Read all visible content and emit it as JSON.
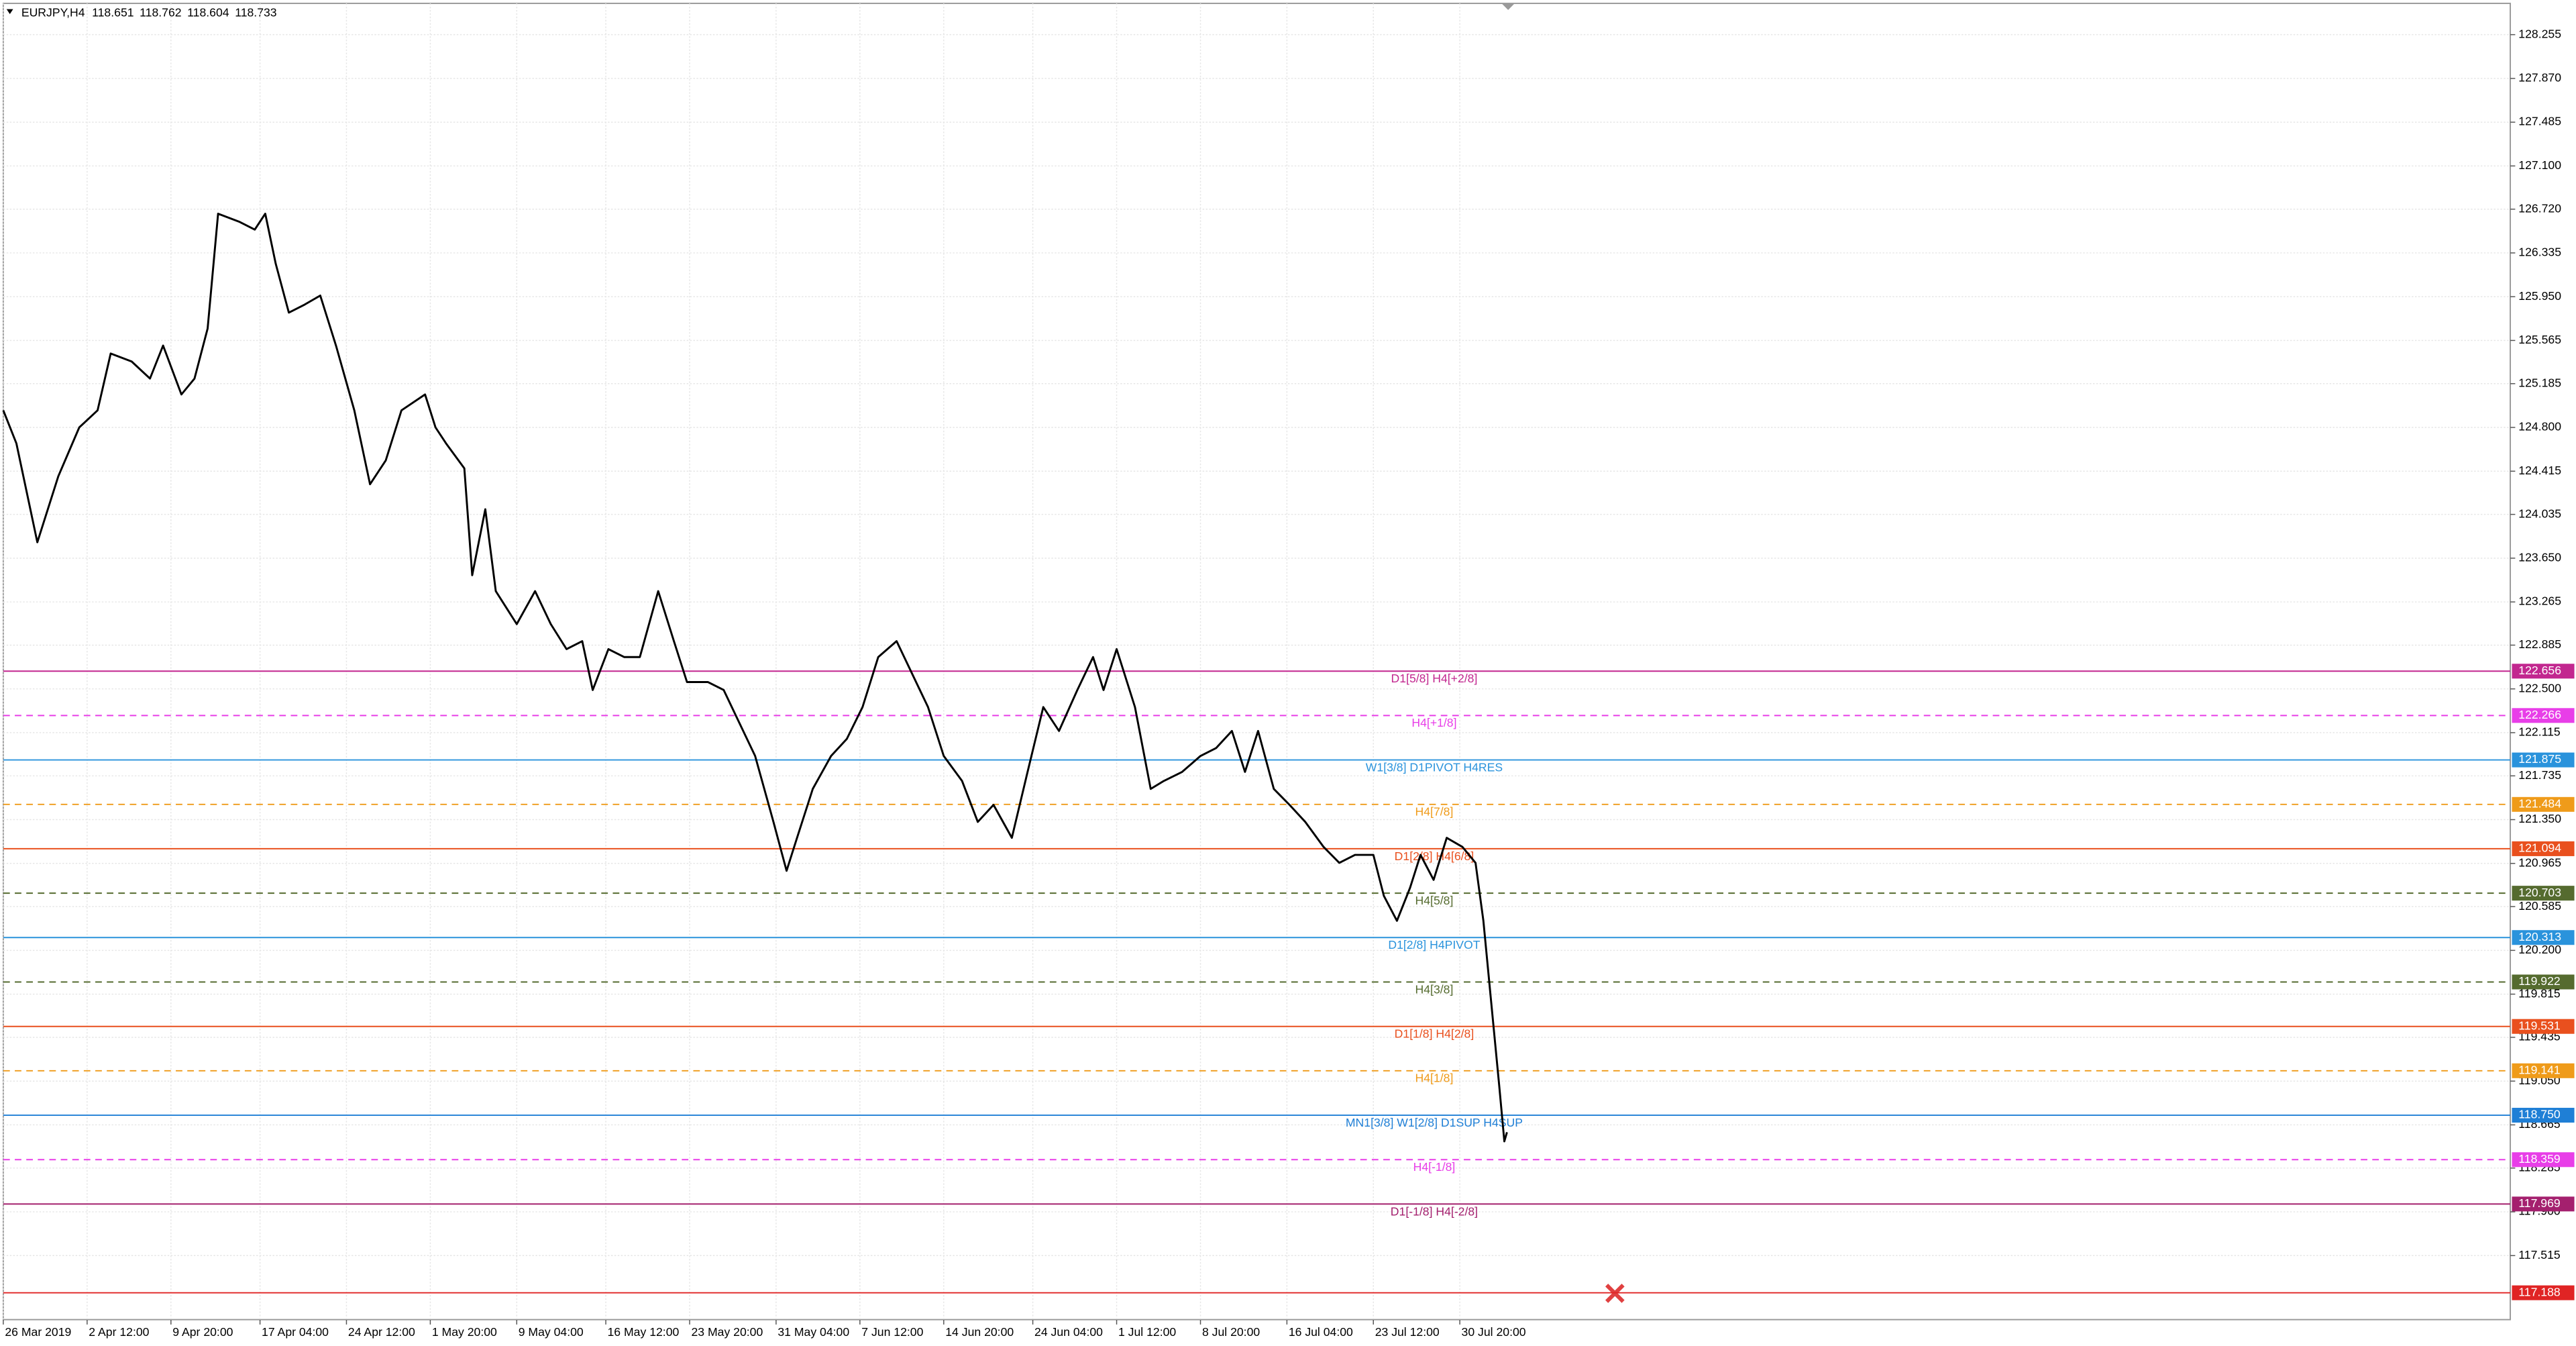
{
  "chart_data": {
    "type": "line",
    "header": {
      "symbol": "EURJPY,H4",
      "ohlc": [
        118.651,
        118.762,
        118.604,
        118.733
      ]
    },
    "series": [
      {
        "color": "#000000",
        "x": [
          0,
          5,
          13,
          21,
          29,
          36,
          41,
          49,
          56,
          61,
          68,
          73,
          78,
          82,
          90,
          96,
          100,
          104,
          109,
          115,
          121,
          127,
          134,
          140,
          146,
          152,
          161,
          165,
          169,
          176,
          179,
          184,
          188,
          196,
          203,
          209,
          215,
          221,
          225,
          231,
          237,
          243,
          250,
          256,
          261,
          269,
          275,
          281,
          287,
          294,
          299,
          303,
          309,
          316,
          322,
          328,
          334,
          341,
          347,
          353,
          359,
          366,
          372,
          378,
          385,
          391,
          397,
          403,
          410,
          416,
          420,
          425,
          432,
          438,
          443,
          450,
          457,
          463,
          469,
          474,
          479,
          485,
          491,
          497,
          504,
          510,
          516,
          523,
          527,
          532,
          537,
          541,
          546,
          551,
          557,
          562,
          565,
          568,
          571,
          573,
          574
        ],
        "values": [
          124.95,
          124.66,
          123.79,
          124.37,
          124.8,
          124.95,
          125.45,
          125.38,
          125.23,
          125.52,
          125.09,
          125.23,
          125.67,
          126.68,
          126.61,
          126.54,
          126.68,
          126.24,
          125.81,
          125.88,
          125.96,
          125.52,
          124.95,
          124.3,
          124.51,
          124.95,
          125.09,
          124.8,
          124.66,
          124.44,
          123.5,
          124.08,
          123.36,
          123.07,
          123.36,
          123.07,
          122.85,
          122.92,
          122.49,
          122.85,
          122.78,
          122.78,
          123.36,
          122.92,
          122.56,
          122.56,
          122.49,
          122.2,
          121.91,
          121.33,
          120.9,
          121.19,
          121.62,
          121.91,
          122.06,
          122.34,
          122.78,
          122.92,
          122.63,
          122.34,
          121.91,
          121.69,
          121.33,
          121.48,
          121.19,
          121.77,
          122.34,
          122.13,
          122.49,
          122.78,
          122.49,
          122.85,
          122.34,
          121.62,
          121.69,
          121.77,
          121.91,
          121.98,
          122.13,
          121.77,
          122.13,
          121.62,
          121.48,
          121.33,
          121.11,
          120.97,
          121.04,
          121.04,
          120.68,
          120.46,
          120.75,
          121.04,
          120.82,
          121.19,
          121.11,
          120.97,
          120.46,
          119.74,
          119.02,
          118.52,
          118.6
        ]
      }
    ],
    "xlim": [
      0,
      957
    ],
    "ylim": [
      116.952,
      128.53
    ],
    "grid": true,
    "xticks": [
      {
        "value": 0,
        "label": "26 Mar 2019"
      },
      {
        "value": 32,
        "label": "2 Apr 12:00"
      },
      {
        "value": 64,
        "label": "9 Apr 20:00"
      },
      {
        "value": 98,
        "label": "17 Apr 04:00"
      },
      {
        "value": 131,
        "label": "24 Apr 12:00"
      },
      {
        "value": 163,
        "label": "1 May 20:00"
      },
      {
        "value": 196,
        "label": "9 May 04:00"
      },
      {
        "value": 230,
        "label": "16 May 12:00"
      },
      {
        "value": 262,
        "label": "23 May 20:00"
      },
      {
        "value": 295,
        "label": "31 May 04:00"
      },
      {
        "value": 327,
        "label": "7 Jun 12:00"
      },
      {
        "value": 359,
        "label": "14 Jun 20:00"
      },
      {
        "value": 393,
        "label": "24 Jun 04:00"
      },
      {
        "value": 425,
        "label": "1 Jul 12:00"
      },
      {
        "value": 457,
        "label": "8 Jul 20:00"
      },
      {
        "value": 490,
        "label": "16 Jul 04:00"
      },
      {
        "value": 523,
        "label": "23 Jul 12:00"
      },
      {
        "value": 556,
        "label": "30 Jul 20:00"
      }
    ],
    "yticks": [
      128.255,
      {
        "value": 127.87,
        "label": "127.870"
      },
      127.485,
      {
        "value": 127.1,
        "label": "127.100"
      },
      {
        "value": 126.72,
        "label": "126.720"
      },
      126.335,
      {
        "value": 125.95,
        "label": "125.950"
      },
      125.565,
      125.185,
      {
        "value": 124.8,
        "label": "124.800"
      },
      124.415,
      124.035,
      {
        "value": 123.65,
        "label": "123.650"
      },
      123.265,
      122.885,
      {
        "value": 122.5,
        "label": "122.500"
      },
      122.115,
      121.735,
      {
        "value": 121.35,
        "label": "121.350"
      },
      120.965,
      120.585,
      {
        "value": 120.2,
        "label": "120.200"
      },
      119.815,
      119.435,
      {
        "value": 119.05,
        "label": "119.050"
      },
      118.665,
      118.285,
      {
        "value": 117.9,
        "label": "117.900"
      },
      117.515
    ],
    "levels": [
      {
        "label": "D1[5/8] H4[+2/8]",
        "price": 122.656,
        "color": "#c2278f",
        "dashed": false
      },
      {
        "label": "H4[+1/8]",
        "price": 122.266,
        "color": "#e83ee8",
        "dashed": true
      },
      {
        "label": "W1[3/8] D1PIVOT H4RES",
        "price": 121.875,
        "color": "#2a93dc",
        "dashed": false
      },
      {
        "label": "H4[7/8]",
        "price": 121.484,
        "color": "#ef9b1a",
        "dashed": true
      },
      {
        "label": "D1[2/8] H4[6/8]",
        "price": 121.094,
        "color": "#e9501e",
        "dashed": false
      },
      {
        "label": "H4[5/8]",
        "price": 120.703,
        "color": "#556b2f",
        "dashed": true
      },
      {
        "label": "D1[2/8] H4PIVOT",
        "price": 120.313,
        "color": "#2a93dc",
        "dashed": false
      },
      {
        "label": "H4[3/8]",
        "price": 119.922,
        "color": "#556b2f",
        "dashed": true
      },
      {
        "label": "D1[1/8] H4[2/8]",
        "price": 119.531,
        "color": "#e9501e",
        "dashed": false
      },
      {
        "label": "H4[1/8]",
        "price": 119.141,
        "color": "#ef9b1a",
        "dashed": true
      },
      {
        "label": "MN1[3/8] W1[2/8] D1SUP H4SUP",
        "price": 118.75,
        "price_label": "118.750",
        "color": "#1f7fd6",
        "dashed": false
      },
      {
        "label": "H4[-1/8]",
        "price": 118.359,
        "color": "#e83ee8",
        "dashed": true
      },
      {
        "label": "D1[-1/8] H4[-2/8]",
        "price": 117.969,
        "color": "#a4206e",
        "dashed": false
      },
      {
        "price": 117.188,
        "color": "#e02424",
        "dashed": false
      }
    ]
  }
}
